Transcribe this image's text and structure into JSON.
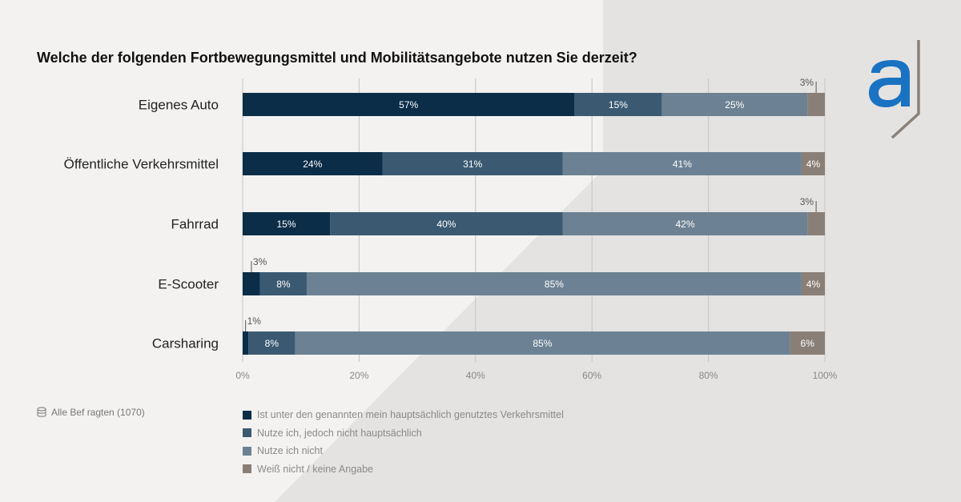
{
  "title": "Welche der folgenden Fortbewegungsmittel und Mobilitätsangebote nutzen Sie derzeit?",
  "basis": "Alle Bef ragten  (1070)",
  "colors": {
    "background": "#f3f2f0",
    "background_shade": "#e4e3e1",
    "brand_blue": "#1a72c2",
    "logo_line": "#8a8178",
    "grid": "#c4c4c4"
  },
  "chart_data": {
    "type": "bar",
    "orientation": "horizontal",
    "stacked": true,
    "title": "Welche der folgenden Fortbewegungsmittel und Mobilitätsangebote nutzen Sie derzeit?",
    "xlabel": "",
    "ylabel": "",
    "xlim": [
      0,
      100
    ],
    "x_ticks": [
      "0%",
      "20%",
      "40%",
      "60%",
      "80%",
      "100%"
    ],
    "grid": true,
    "legend_position": "bottom",
    "categories": [
      "Eigenes Auto",
      "Öffentliche Verkehrsmittel",
      "Fahrrad",
      "E-Scooter",
      "Carsharing"
    ],
    "series": [
      {
        "name": "Ist unter den genannten mein hauptsächlich genutztes Verkehrsmittel",
        "color": "#0b2d48",
        "values": [
          57,
          24,
          15,
          3,
          1
        ],
        "labels": [
          "57%",
          "24%",
          "15%",
          "3%",
          "1%"
        ]
      },
      {
        "name": "Nutze ich, jedoch nicht hauptsächlich",
        "color": "#3b5a72",
        "values": [
          15,
          31,
          40,
          8,
          8
        ],
        "labels": [
          "15%",
          "31%",
          "40%",
          "8%",
          "8%"
        ]
      },
      {
        "name": "Nutze ich nicht",
        "color": "#6c8294",
        "values": [
          25,
          41,
          42,
          85,
          85
        ],
        "labels": [
          "25%",
          "41%",
          "42%",
          "85%",
          "85%"
        ]
      },
      {
        "name": "Weiß nicht / keine Angabe",
        "color": "#8a7f77",
        "values": [
          3,
          4,
          3,
          4,
          6
        ],
        "labels": [
          "3%",
          "4%",
          "3%",
          "4%",
          "6%"
        ]
      }
    ]
  }
}
